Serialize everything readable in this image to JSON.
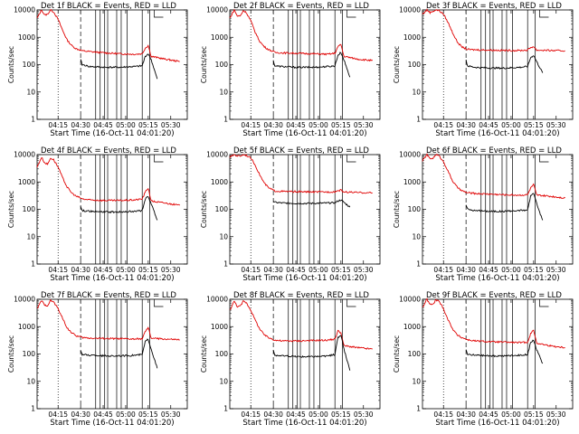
{
  "figure": {
    "panels": [
      {
        "title": "Det 1f BLACK = Events, RED = LLD"
      },
      {
        "title": "Det 2f BLACK = Events, RED = LLD"
      },
      {
        "title": "Det 3f BLACK = Events, RED = LLD"
      },
      {
        "title": "Det 4f BLACK = Events, RED = LLD"
      },
      {
        "title": "Det 5f BLACK = Events, RED = LLD"
      },
      {
        "title": "Det 6f BLACK = Events, RED = LLD"
      },
      {
        "title": "Det 7f BLACK = Events, RED = LLD"
      },
      {
        "title": "Det 8f BLACK = Events, RED = LLD"
      },
      {
        "title": "Det 9f BLACK = Events, RED = LLD"
      }
    ]
  },
  "colors": {
    "events": "#000000",
    "lld": "#e00000"
  },
  "chart_data": {
    "type": "line",
    "layout": "3x3 grid",
    "ylabel": "Counts/sec",
    "xlabel": "Start Time (16-Oct-11 04:01:20)",
    "yscale": "log",
    "ylim": [
      1,
      10000
    ],
    "y_ticks": [
      "1",
      "10",
      "100",
      "1000",
      "10000"
    ],
    "xlim_minutes": [
      0,
      100
    ],
    "x_ticks": [
      "04:15",
      "04:30",
      "04:45",
      "05:00",
      "05:15",
      "05:30"
    ],
    "series_names": [
      "BLACK = Events",
      "RED = LLD"
    ],
    "dotted_line_minutes": 14,
    "dashed_line_minutes": 29,
    "vertical_lines_minutes": [
      39,
      42,
      45,
      47,
      53,
      56,
      60,
      70,
      75
    ],
    "panels": [
      {
        "detector": "1f",
        "red": {
          "minutes": [
            0,
            3,
            5,
            7,
            9,
            11,
            14,
            17,
            20,
            23,
            26,
            29,
            30,
            35,
            45,
            55,
            65,
            70,
            72,
            74,
            76,
            85,
            95
          ],
          "values": [
            5000,
            10000,
            6500,
            7000,
            10000,
            8500,
            4500,
            1800,
            800,
            500,
            380,
            340,
            320,
            300,
            270,
            250,
            240,
            250,
            400,
            500,
            200,
            160,
            130
          ]
        },
        "black": {
          "minutes": [
            29,
            30,
            35,
            45,
            55,
            65,
            70,
            72,
            74,
            76,
            80
          ],
          "values": [
            150,
            100,
            85,
            80,
            80,
            85,
            90,
            200,
            250,
            150,
            30
          ]
        }
      },
      {
        "detector": "2f",
        "red": {
          "minutes": [
            0,
            3,
            5,
            7,
            9,
            11,
            14,
            17,
            20,
            23,
            26,
            29,
            30,
            35,
            45,
            55,
            65,
            70,
            72,
            74,
            76,
            85,
            95
          ],
          "values": [
            5000,
            10000,
            6000,
            6000,
            9500,
            8000,
            4000,
            1500,
            700,
            450,
            350,
            300,
            280,
            270,
            260,
            250,
            240,
            260,
            450,
            550,
            200,
            160,
            140
          ]
        },
        "black": {
          "minutes": [
            29,
            30,
            35,
            45,
            55,
            65,
            70,
            72,
            74,
            76,
            80
          ],
          "values": [
            140,
            90,
            85,
            80,
            80,
            85,
            90,
            220,
            280,
            150,
            35
          ]
        }
      },
      {
        "detector": "3f",
        "red": {
          "minutes": [
            0,
            3,
            5,
            7,
            9,
            11,
            14,
            17,
            20,
            23,
            26,
            29,
            30,
            35,
            45,
            55,
            65,
            70,
            72,
            74,
            76,
            85,
            95
          ],
          "values": [
            7000,
            10000,
            8000,
            9000,
            10000,
            9500,
            7000,
            3500,
            1500,
            700,
            450,
            380,
            360,
            350,
            340,
            330,
            330,
            340,
            420,
            460,
            340,
            330,
            320
          ]
        },
        "black": {
          "minutes": [
            29,
            30,
            35,
            45,
            55,
            65,
            70,
            72,
            74,
            76,
            80
          ],
          "values": [
            150,
            90,
            80,
            75,
            75,
            80,
            85,
            180,
            220,
            130,
            50
          ]
        }
      },
      {
        "detector": "4f",
        "red": {
          "minutes": [
            0,
            3,
            5,
            7,
            9,
            11,
            14,
            17,
            20,
            23,
            26,
            29,
            30,
            35,
            45,
            55,
            65,
            70,
            72,
            74,
            76,
            85,
            95
          ],
          "values": [
            3500,
            8000,
            5000,
            4500,
            7500,
            6500,
            3500,
            1400,
            650,
            400,
            300,
            260,
            240,
            220,
            210,
            210,
            220,
            240,
            420,
            600,
            200,
            170,
            140
          ]
        },
        "black": {
          "minutes": [
            29,
            30,
            35,
            45,
            55,
            65,
            70,
            72,
            74,
            76,
            80
          ],
          "values": [
            130,
            90,
            85,
            80,
            80,
            85,
            90,
            230,
            300,
            160,
            40
          ]
        }
      },
      {
        "detector": "5f",
        "red": {
          "minutes": [
            0,
            3,
            5,
            7,
            9,
            11,
            14,
            17,
            20,
            23,
            26,
            29,
            30,
            35,
            45,
            55,
            65,
            70,
            72,
            74,
            76,
            85,
            95
          ],
          "values": [
            8000,
            10000,
            9000,
            9000,
            10000,
            9500,
            7500,
            4000,
            1800,
            900,
            600,
            500,
            470,
            450,
            440,
            430,
            430,
            440,
            480,
            500,
            430,
            410,
            400
          ]
        },
        "black": {
          "minutes": [
            29,
            30,
            35,
            45,
            55,
            65,
            70,
            72,
            74,
            76,
            80
          ],
          "values": [
            200,
            180,
            170,
            165,
            165,
            170,
            175,
            200,
            220,
            180,
            120
          ]
        }
      },
      {
        "detector": "6f",
        "red": {
          "minutes": [
            0,
            3,
            5,
            7,
            9,
            11,
            14,
            17,
            20,
            23,
            26,
            29,
            30,
            35,
            45,
            55,
            65,
            70,
            72,
            74,
            76,
            85,
            95
          ],
          "values": [
            6000,
            10000,
            7000,
            7500,
            10000,
            9000,
            5500,
            2500,
            1100,
            650,
            480,
            420,
            400,
            380,
            360,
            340,
            330,
            340,
            600,
            800,
            330,
            300,
            260
          ]
        },
        "black": {
          "minutes": [
            29,
            30,
            35,
            45,
            55,
            65,
            70,
            72,
            74,
            76,
            80
          ],
          "values": [
            150,
            100,
            90,
            85,
            85,
            90,
            95,
            300,
            400,
            160,
            40
          ]
        }
      },
      {
        "detector": "7f",
        "red": {
          "minutes": [
            0,
            3,
            5,
            7,
            9,
            11,
            14,
            17,
            20,
            23,
            26,
            29,
            30,
            35,
            45,
            55,
            65,
            70,
            72,
            74,
            76,
            85,
            95
          ],
          "values": [
            4500,
            9000,
            6000,
            6000,
            9000,
            8000,
            4500,
            2000,
            900,
            600,
            460,
            420,
            400,
            380,
            370,
            360,
            350,
            360,
            650,
            900,
            380,
            350,
            330
          ]
        },
        "black": {
          "minutes": [
            29,
            30,
            35,
            45,
            55,
            65,
            70,
            72,
            74,
            76,
            80
          ],
          "values": [
            140,
            95,
            90,
            85,
            85,
            90,
            95,
            280,
            350,
            150,
            30
          ]
        }
      },
      {
        "detector": "8f",
        "red": {
          "minutes": [
            0,
            3,
            5,
            7,
            9,
            11,
            14,
            17,
            20,
            23,
            26,
            29,
            30,
            35,
            45,
            55,
            65,
            70,
            72,
            74,
            76,
            85,
            95
          ],
          "values": [
            4000,
            8500,
            5500,
            5500,
            8500,
            7500,
            4000,
            1700,
            800,
            500,
            390,
            340,
            320,
            300,
            300,
            310,
            320,
            350,
            700,
            600,
            200,
            170,
            150
          ]
        },
        "black": {
          "minutes": [
            29,
            30,
            35,
            45,
            55,
            65,
            70,
            72,
            74,
            76,
            80
          ],
          "values": [
            130,
            90,
            85,
            80,
            80,
            85,
            95,
            400,
            500,
            150,
            25
          ]
        }
      },
      {
        "detector": "9f",
        "red": {
          "minutes": [
            0,
            3,
            5,
            7,
            9,
            11,
            14,
            17,
            20,
            23,
            26,
            29,
            30,
            35,
            45,
            55,
            65,
            70,
            72,
            74,
            76,
            85,
            95
          ],
          "values": [
            5000,
            10000,
            6500,
            6500,
            9500,
            8500,
            4500,
            1800,
            850,
            500,
            400,
            350,
            330,
            300,
            280,
            270,
            260,
            270,
            550,
            750,
            250,
            200,
            170
          ]
        },
        "black": {
          "minutes": [
            29,
            30,
            35,
            45,
            55,
            65,
            70,
            72,
            74,
            76,
            80
          ],
          "values": [
            140,
            95,
            90,
            85,
            85,
            90,
            95,
            260,
            330,
            140,
            45
          ]
        }
      }
    ]
  }
}
